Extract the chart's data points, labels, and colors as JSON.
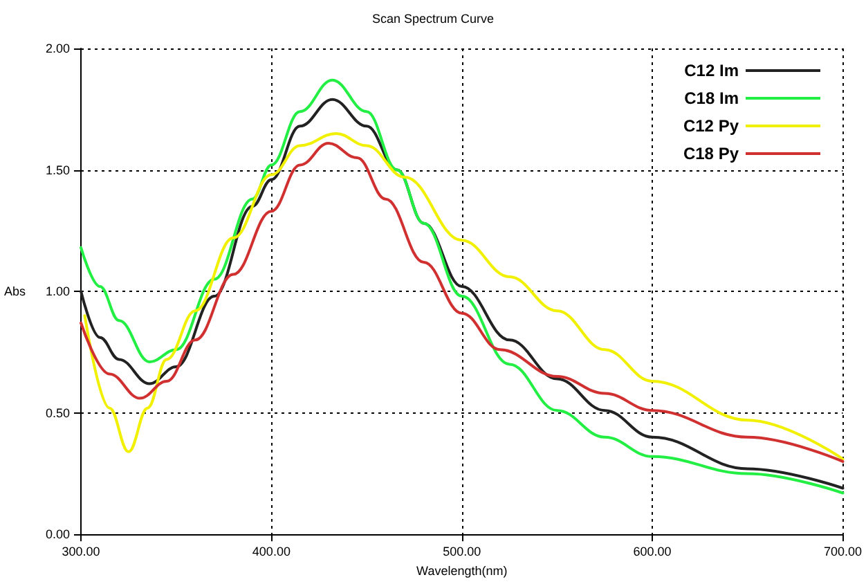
{
  "chart_data": {
    "type": "line",
    "title": "Scan Spectrum Curve",
    "xlabel": "Wavelength(nm)",
    "ylabel": "Abs",
    "xlim": [
      300,
      700
    ],
    "xticks": [
      {
        "value": 300,
        "label": "300.00"
      },
      {
        "value": 400,
        "label": "400.00"
      },
      {
        "value": 500,
        "label": "500.00"
      },
      {
        "value": 600,
        "label": "600.00"
      },
      {
        "value": 700,
        "label": "700.00"
      }
    ],
    "ylim": [
      0,
      2
    ],
    "yticks": [
      {
        "value": 0,
        "label": "0.00"
      },
      {
        "value": 0.5,
        "label": "0.50"
      },
      {
        "value": 1,
        "label": "1.00"
      },
      {
        "value": 1.5,
        "label": "1.50"
      },
      {
        "value": 2,
        "label": "2.00"
      }
    ],
    "grid": true,
    "legend": "top right",
    "marker": "none",
    "line_style": "solid",
    "series": [
      {
        "name": "C12 Im",
        "color": "#222222",
        "x": [
          300,
          310,
          320,
          336,
          350,
          370,
          390,
          400,
          415,
          432,
          450,
          466,
          480,
          500,
          525,
          550,
          575,
          600,
          650,
          700
        ],
        "values": [
          1.0,
          0.81,
          0.72,
          0.62,
          0.69,
          0.98,
          1.35,
          1.46,
          1.68,
          1.79,
          1.68,
          1.5,
          1.28,
          1.02,
          0.8,
          0.64,
          0.51,
          0.4,
          0.27,
          0.19
        ]
      },
      {
        "name": "C18 Im",
        "color": "#22ee44",
        "x": [
          300,
          310,
          320,
          336,
          350,
          370,
          390,
          400,
          415,
          432,
          450,
          466,
          480,
          500,
          525,
          550,
          575,
          600,
          650,
          700
        ],
        "values": [
          1.18,
          1.02,
          0.88,
          0.71,
          0.76,
          1.05,
          1.38,
          1.52,
          1.74,
          1.87,
          1.74,
          1.5,
          1.28,
          0.98,
          0.7,
          0.51,
          0.4,
          0.32,
          0.25,
          0.17
        ]
      },
      {
        "name": "C12 Py",
        "color": "#f0f000",
        "x": [
          302,
          315,
          325,
          335,
          345,
          360,
          380,
          400,
          415,
          434,
          450,
          470,
          500,
          525,
          550,
          575,
          600,
          650,
          700
        ],
        "values": [
          0.9,
          0.52,
          0.34,
          0.52,
          0.72,
          0.92,
          1.22,
          1.48,
          1.6,
          1.65,
          1.6,
          1.47,
          1.21,
          1.06,
          0.92,
          0.76,
          0.63,
          0.47,
          0.31
        ]
      },
      {
        "name": "C18 Py",
        "color": "#d03030",
        "x": [
          300,
          315,
          331,
          345,
          360,
          380,
          400,
          415,
          430,
          445,
          460,
          480,
          500,
          520,
          550,
          575,
          600,
          650,
          700
        ],
        "values": [
          0.87,
          0.66,
          0.56,
          0.63,
          0.8,
          1.07,
          1.33,
          1.52,
          1.61,
          1.55,
          1.38,
          1.12,
          0.91,
          0.76,
          0.65,
          0.58,
          0.51,
          0.4,
          0.3
        ]
      }
    ]
  }
}
